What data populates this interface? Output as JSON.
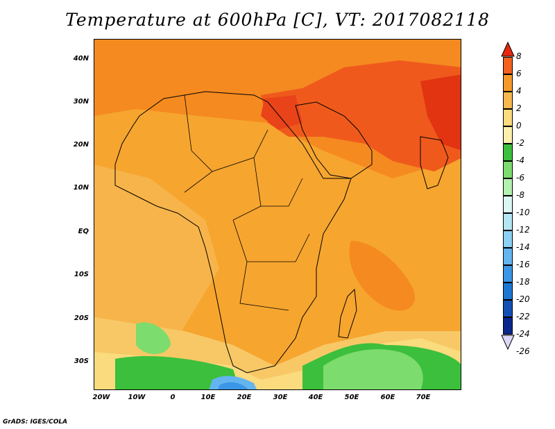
{
  "title": "Temperature at 600hPa [C], VT: 2017082118",
  "credit": "GrADS: IGES/COLA",
  "lat_labels": [
    "40N",
    "30N",
    "20N",
    "10N",
    "EQ",
    "10S",
    "20S",
    "30S"
  ],
  "lon_labels": [
    "20W",
    "10W",
    "0",
    "10E",
    "20E",
    "30E",
    "40E",
    "50E",
    "60E",
    "70E"
  ],
  "colorbar": {
    "labels": [
      "8",
      "6",
      "4",
      "2",
      "0",
      "-2",
      "-4",
      "-6",
      "-8",
      "-10",
      "-12",
      "-14",
      "-16",
      "-18",
      "-20",
      "-22",
      "-24",
      "-26"
    ],
    "colors": [
      "#e62710",
      "#f5611f",
      "#f59a2a",
      "#f7b850",
      "#fadb7d",
      "#fbf1ad",
      "#3cbf3c",
      "#7ddc6e",
      "#b4f0b0",
      "#dcf6f4",
      "#b4e6f4",
      "#8cd0f4",
      "#64b4f0",
      "#3c96e6",
      "#1e78d2",
      "#1450b4",
      "#0a288c",
      "#000060"
    ]
  }
}
